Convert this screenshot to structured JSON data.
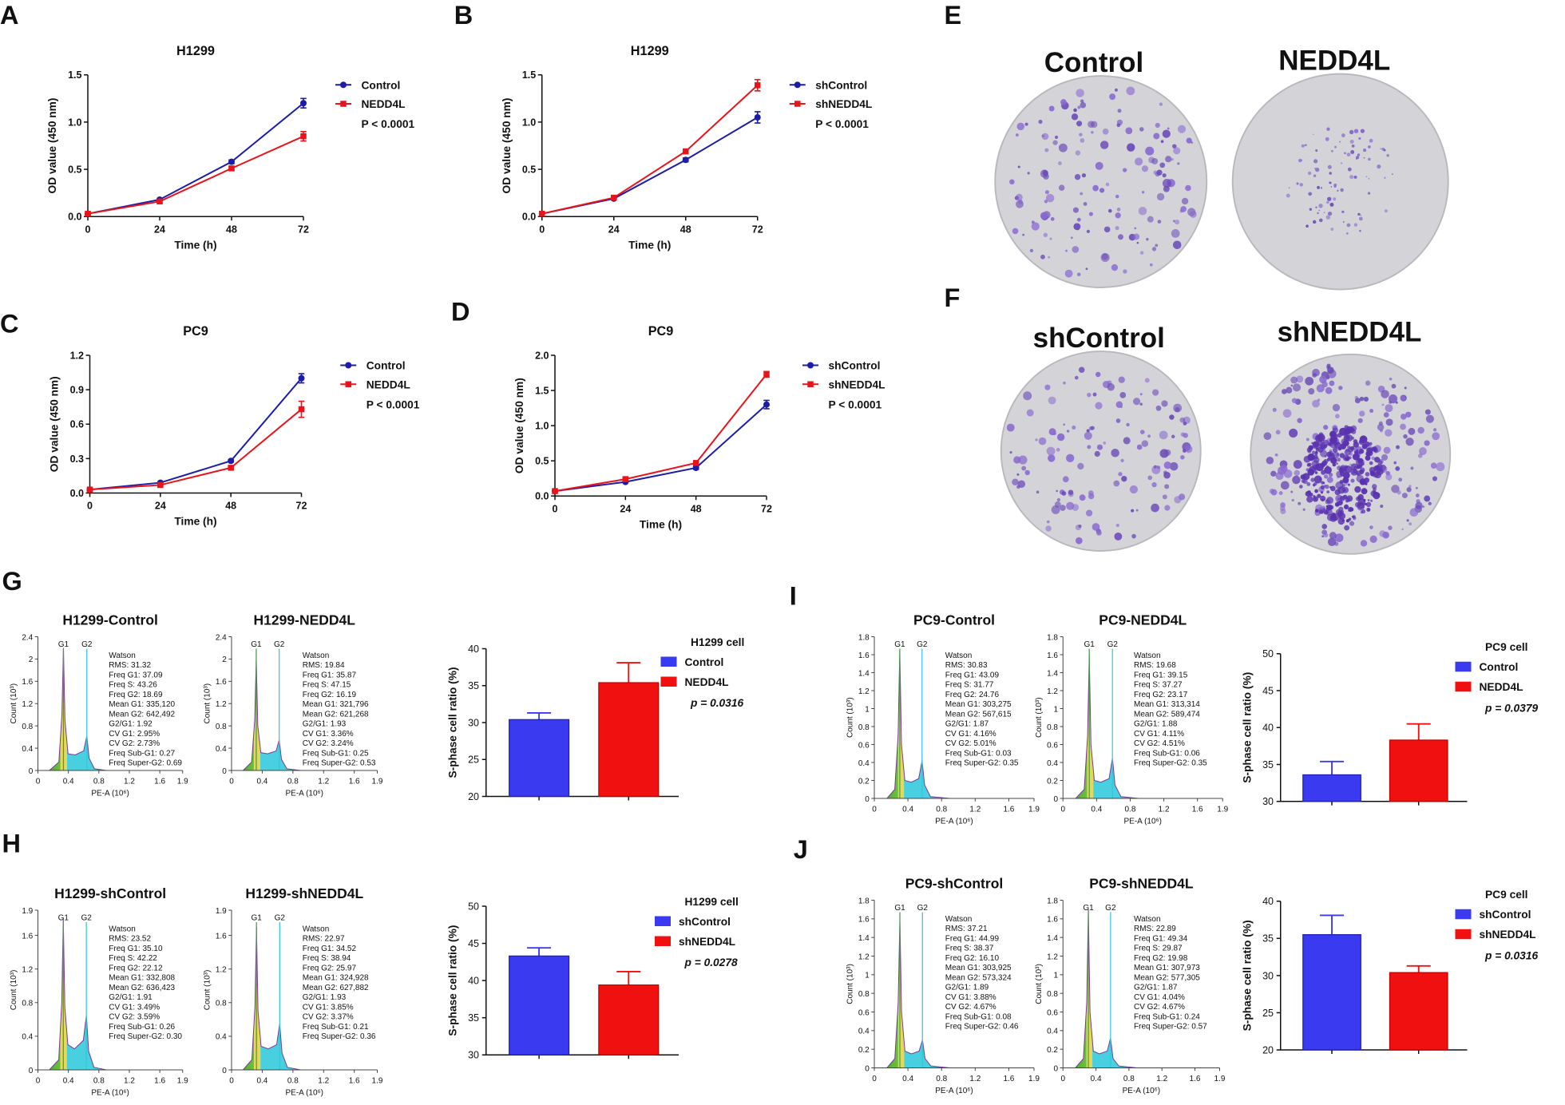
{
  "panel_labels": [
    "A",
    "B",
    "C",
    "D",
    "E",
    "F",
    "G",
    "H",
    "I",
    "J"
  ],
  "colony_plates": [
    {
      "label": "Control"
    },
    {
      "label": "NEDD4L"
    },
    {
      "label": "shControl"
    },
    {
      "label": "shNEDD4L"
    }
  ],
  "chart_data": [
    {
      "type": "line",
      "title": "H1299",
      "xlabel": "Time (h)",
      "ylabel": "OD value (450 nm)",
      "x": [
        0,
        24,
        48,
        72
      ],
      "xlim": [
        0,
        72
      ],
      "xticks": [
        0,
        24,
        48,
        72
      ],
      "ylim": [
        0,
        1.5
      ],
      "yticks": [
        {
          "value": 0,
          "label": "0.0"
        },
        {
          "value": 0.5,
          "label": "0.5"
        },
        {
          "value": 1,
          "label": "1.0"
        },
        {
          "value": 1.5,
          "label": "1.5"
        }
      ],
      "annotation": "P < 0.0001",
      "series": [
        {
          "name": "Control",
          "color": "#1c1ca8",
          "marker": "circle",
          "values": [
            0.03,
            0.18,
            0.58,
            1.2
          ],
          "errors": [
            0.01,
            0.01,
            0.02,
            0.05
          ]
        },
        {
          "name": "NEDD4L",
          "color": "#e8141c",
          "marker": "square",
          "values": [
            0.03,
            0.16,
            0.51,
            0.85
          ],
          "errors": [
            0.01,
            0.01,
            0.02,
            0.05
          ]
        }
      ]
    },
    {
      "type": "line",
      "title": "H1299",
      "xlabel": "Time (h)",
      "ylabel": "OD value (450 nm)",
      "x": [
        0,
        24,
        48,
        72
      ],
      "xlim": [
        0,
        72
      ],
      "xticks": [
        0,
        24,
        48,
        72
      ],
      "ylim": [
        0,
        1.5
      ],
      "yticks": [
        {
          "value": 0,
          "label": "0.0"
        },
        {
          "value": 0.5,
          "label": "0.5"
        },
        {
          "value": 1,
          "label": "1.0"
        },
        {
          "value": 1.5,
          "label": "1.5"
        }
      ],
      "annotation": "P < 0.0001",
      "series": [
        {
          "name": "shControl",
          "color": "#1c1ca8",
          "marker": "circle",
          "values": [
            0.03,
            0.19,
            0.6,
            1.05
          ],
          "errors": [
            0.01,
            0.01,
            0.02,
            0.06
          ]
        },
        {
          "name": "shNEDD4L",
          "color": "#e8141c",
          "marker": "square",
          "values": [
            0.03,
            0.2,
            0.69,
            1.39
          ],
          "errors": [
            0.01,
            0.01,
            0.02,
            0.06
          ]
        }
      ]
    },
    {
      "type": "line",
      "title": "PC9",
      "xlabel": "Time (h)",
      "ylabel": "OD value (450 nm)",
      "x": [
        0,
        24,
        48,
        72
      ],
      "xlim": [
        0,
        72
      ],
      "xticks": [
        0,
        24,
        48,
        72
      ],
      "ylim": [
        0,
        1.2
      ],
      "yticks": [
        {
          "value": 0,
          "label": "0.0"
        },
        {
          "value": 0.3,
          "label": "0.3"
        },
        {
          "value": 0.6,
          "label": "0.6"
        },
        {
          "value": 0.9,
          "label": "0.9"
        },
        {
          "value": 1.2,
          "label": "1.2"
        }
      ],
      "annotation": "P < 0.0001",
      "series": [
        {
          "name": "Control",
          "color": "#1c1ca8",
          "marker": "circle",
          "values": [
            0.03,
            0.09,
            0.28,
            1.0
          ],
          "errors": [
            0.01,
            0.01,
            0.01,
            0.04
          ]
        },
        {
          "name": "NEDD4L",
          "color": "#e8141c",
          "marker": "square",
          "values": [
            0.03,
            0.07,
            0.22,
            0.73
          ],
          "errors": [
            0.01,
            0.01,
            0.01,
            0.07
          ]
        }
      ]
    },
    {
      "type": "line",
      "title": "PC9",
      "xlabel": "Time (h)",
      "ylabel": "OD value (450 nm)",
      "x": [
        0,
        24,
        48,
        72
      ],
      "xlim": [
        0,
        72
      ],
      "xticks": [
        0,
        24,
        48,
        72
      ],
      "ylim": [
        0,
        2
      ],
      "yticks": [
        {
          "value": 0,
          "label": "0.0"
        },
        {
          "value": 0.5,
          "label": "0.5"
        },
        {
          "value": 1,
          "label": "1.0"
        },
        {
          "value": 1.5,
          "label": "1.5"
        },
        {
          "value": 2,
          "label": "2.0"
        }
      ],
      "annotation": "P < 0.0001",
      "series": [
        {
          "name": "shControl",
          "color": "#1c1ca8",
          "marker": "circle",
          "values": [
            0.07,
            0.2,
            0.4,
            1.3
          ],
          "errors": [
            0.01,
            0.01,
            0.02,
            0.06
          ]
        },
        {
          "name": "shNEDD4L",
          "color": "#e8141c",
          "marker": "square",
          "values": [
            0.07,
            0.24,
            0.47,
            1.73
          ],
          "errors": [
            0.01,
            0.01,
            0.02,
            0.04
          ]
        }
      ]
    },
    {
      "type": "area",
      "title": "H1299-Control",
      "xlabel": "PE-A (10⁶)",
      "ylabel": "Count (10³)",
      "x": [
        0.15,
        0.275,
        0.315,
        0.335,
        0.355,
        0.395,
        0.49,
        0.6,
        0.642,
        0.672,
        0.742,
        0.9
      ],
      "values": [
        0,
        0.15,
        1.0,
        2.2,
        0.9,
        0.3,
        0.28,
        0.35,
        0.62,
        0.22,
        0.03,
        0
      ],
      "xlim": [
        0,
        1.9
      ],
      "xticks": [
        0,
        0.4,
        0.8,
        1.2,
        1.6,
        1.9
      ],
      "ylim": [
        0,
        2.4
      ],
      "yticks": [
        0,
        0.4,
        0.8,
        1.2,
        1.6,
        2,
        2.4
      ],
      "gates": [
        {
          "label": "G1",
          "value": 0.335
        },
        {
          "label": "G2",
          "value": 0.642
        }
      ],
      "stats": [
        "Watson",
        "RMS: 31.32",
        "Freq G1: 37.09",
        "Freq S: 43.26",
        "Freq G2: 18.69",
        "Mean G1: 335,120",
        "Mean G2: 642,492",
        "G2/G1: 1.92",
        "CV G1: 2.95%",
        "CV G2: 2.73%",
        "Freq Sub-G1: 0.27",
        "Freq Super-G2: 0.69"
      ]
    },
    {
      "type": "area",
      "title": "H1299-NEDD4L",
      "xlabel": "PE-A (10⁶)",
      "ylabel": "Count (10³)",
      "x": [
        0.15,
        0.262,
        0.302,
        0.322,
        0.342,
        0.382,
        0.47,
        0.581,
        0.621,
        0.651,
        0.721,
        0.9
      ],
      "values": [
        0,
        0.15,
        0.9,
        2.0,
        0.8,
        0.32,
        0.3,
        0.35,
        0.55,
        0.2,
        0.03,
        0
      ],
      "xlim": [
        0,
        1.9
      ],
      "xticks": [
        0,
        0.4,
        0.8,
        1.2,
        1.6,
        1.9
      ],
      "ylim": [
        0,
        2.4
      ],
      "yticks": [
        0,
        0.4,
        0.8,
        1.2,
        1.6,
        2,
        2.4
      ],
      "gates": [
        {
          "label": "G1",
          "value": 0.322
        },
        {
          "label": "G2",
          "value": 0.621
        }
      ],
      "stats": [
        "Watson",
        "RMS: 19.84",
        "Freq G1: 35.87",
        "Freq S: 47.15",
        "Freq G2: 16.19",
        "Mean G1: 321,796",
        "Mean G2: 621,268",
        "G2/G1: 1.93",
        "CV G1: 3.36%",
        "CV G2: 3.24%",
        "Freq Sub-G1: 0.25",
        "Freq Super-G2: 0.53"
      ]
    },
    {
      "type": "bar",
      "ylabel": "S-phase cell ratio (%)",
      "legend_title": "H1299 cell",
      "categories": [
        "Control",
        "NEDD4L"
      ],
      "values": [
        30.4,
        35.4
      ],
      "errors": [
        0.9,
        2.7
      ],
      "colors": [
        "#3a3af0",
        "#f01010"
      ],
      "annotation": "p = 0.0316",
      "ylim": [
        20,
        40
      ],
      "yticks": [
        20,
        25,
        30,
        35,
        40
      ]
    },
    {
      "type": "area",
      "title": "H1299-shControl",
      "xlabel": "PE-A (10⁶)",
      "ylabel": "Count (10³)",
      "x": [
        0.15,
        0.273,
        0.313,
        0.333,
        0.353,
        0.393,
        0.48,
        0.596,
        0.636,
        0.666,
        0.736,
        0.9
      ],
      "values": [
        0,
        0.12,
        0.8,
        1.8,
        0.75,
        0.3,
        0.25,
        0.35,
        0.65,
        0.22,
        0.03,
        0
      ],
      "xlim": [
        0,
        1.9
      ],
      "xticks": [
        0,
        0.4,
        0.8,
        1.2,
        1.6,
        1.9
      ],
      "ylim": [
        0,
        1.9
      ],
      "yticks": [
        0,
        0.4,
        0.8,
        1.2,
        1.6,
        1.9
      ],
      "gates": [
        {
          "label": "G1",
          "value": 0.333
        },
        {
          "label": "G2",
          "value": 0.636
        }
      ],
      "stats": [
        "Watson",
        "RMS: 23.52",
        "Freq G1: 35.10",
        "Freq S: 42.22",
        "Freq G2: 22.12",
        "Mean G1: 332,808",
        "Mean G2: 636,423",
        "G2/G1: 1.91",
        "CV G1: 3.49%",
        "CV G2: 3.59%",
        "Freq Sub-G1: 0.26",
        "Freq Super-G2: 0.30"
      ]
    },
    {
      "type": "area",
      "title": "H1299-shNEDD4L",
      "xlabel": "PE-A (10⁶)",
      "ylabel": "Count (10³)",
      "x": [
        0.15,
        0.265,
        0.305,
        0.325,
        0.345,
        0.385,
        0.48,
        0.588,
        0.628,
        0.658,
        0.728,
        0.9
      ],
      "values": [
        0,
        0.12,
        0.75,
        1.7,
        0.7,
        0.28,
        0.25,
        0.3,
        0.55,
        0.2,
        0.03,
        0
      ],
      "xlim": [
        0,
        1.9
      ],
      "xticks": [
        0,
        0.4,
        0.8,
        1.2,
        1.6,
        1.9
      ],
      "ylim": [
        0,
        1.9
      ],
      "yticks": [
        0,
        0.4,
        0.8,
        1.2,
        1.6,
        1.9
      ],
      "gates": [
        {
          "label": "G1",
          "value": 0.325
        },
        {
          "label": "G2",
          "value": 0.628
        }
      ],
      "stats": [
        "Watson",
        "RMS: 22.97",
        "Freq G1: 34.52",
        "Freq S: 38.94",
        "Freq G2: 25.97",
        "Mean G1: 324,928",
        "Mean G2: 627,882",
        "G2/G1: 1.93",
        "CV G1: 3.85%",
        "CV G2: 3.37%",
        "Freq Sub-G1: 0.21",
        "Freq Super-G2: 0.36"
      ]
    },
    {
      "type": "bar",
      "ylabel": "S-phase cell ratio (%)",
      "legend_title": "H1299 cell",
      "categories": [
        "shControl",
        "shNEDD4L"
      ],
      "values": [
        43.3,
        39.4
      ],
      "errors": [
        1.1,
        1.8
      ],
      "colors": [
        "#3a3af0",
        "#f01010"
      ],
      "annotation": "p = 0.0278",
      "ylim": [
        30,
        50
      ],
      "yticks": [
        30,
        35,
        40,
        45,
        50
      ]
    },
    {
      "type": "area",
      "title": "PC9-Control",
      "xlabel": "PE-A (10⁶)",
      "ylabel": "Count (10³)",
      "x": [
        0.15,
        0.243,
        0.283,
        0.303,
        0.323,
        0.363,
        0.44,
        0.528,
        0.568,
        0.598,
        0.668,
        0.9
      ],
      "values": [
        0,
        0.1,
        0.7,
        1.65,
        0.6,
        0.2,
        0.18,
        0.22,
        0.42,
        0.15,
        0.02,
        0
      ],
      "xlim": [
        0,
        1.9
      ],
      "xticks": [
        0,
        0.4,
        0.8,
        1.2,
        1.6,
        1.9
      ],
      "ylim": [
        0,
        1.8
      ],
      "yticks": [
        0,
        0.2,
        0.4,
        0.6,
        0.8,
        1,
        1.2,
        1.4,
        1.6,
        1.8
      ],
      "gates": [
        {
          "label": "G1",
          "value": 0.303
        },
        {
          "label": "G2",
          "value": 0.568
        }
      ],
      "stats": [
        "Watson",
        "RMS: 30.83",
        "Freq G1: 43.09",
        "Freq S: 31.77",
        "Freq G2: 24.76",
        "Mean G1: 303,275",
        "Mean G2: 567,615",
        "G2/G1: 1.87",
        "CV G1: 4.16%",
        "CV G2: 5.01%",
        "Freq Sub-G1: 0.03",
        "Freq Super-G2: 0.35"
      ]
    },
    {
      "type": "area",
      "title": "PC9-NEDD4L",
      "xlabel": "PE-A (10⁶)",
      "ylabel": "Count (10³)",
      "x": [
        0.15,
        0.253,
        0.293,
        0.313,
        0.333,
        0.373,
        0.45,
        0.549,
        0.589,
        0.619,
        0.689,
        0.9
      ],
      "values": [
        0,
        0.1,
        0.7,
        1.6,
        0.6,
        0.2,
        0.18,
        0.22,
        0.45,
        0.15,
        0.02,
        0
      ],
      "xlim": [
        0,
        1.9
      ],
      "xticks": [
        0,
        0.4,
        0.8,
        1.2,
        1.6,
        1.9
      ],
      "ylim": [
        0,
        1.8
      ],
      "yticks": [
        0,
        0.2,
        0.4,
        0.6,
        0.8,
        1,
        1.2,
        1.4,
        1.6,
        1.8
      ],
      "gates": [
        {
          "label": "G1",
          "value": 0.313
        },
        {
          "label": "G2",
          "value": 0.589
        }
      ],
      "stats": [
        "Watson",
        "RMS: 19.68",
        "Freq G1: 39.15",
        "Freq S: 37.27",
        "Freq G2: 23.17",
        "Mean G1: 313,314",
        "Mean G2: 589,474",
        "G2/G1: 1.88",
        "CV G1: 4.11%",
        "CV G2: 4.51%",
        "Freq Sub-G1: 0.06",
        "Freq Super-G2: 0.35"
      ]
    },
    {
      "type": "bar",
      "ylabel": "S-phase cell ratio (%)",
      "legend_title": "PC9 cell",
      "categories": [
        "Control",
        "NEDD4L"
      ],
      "values": [
        33.6,
        38.3
      ],
      "errors": [
        1.8,
        2.2
      ],
      "colors": [
        "#3a3af0",
        "#f01010"
      ],
      "annotation": "p = 0.0379",
      "ylim": [
        30,
        50
      ],
      "yticks": [
        30,
        35,
        40,
        45,
        50
      ]
    },
    {
      "type": "area",
      "title": "PC9-shControl",
      "xlabel": "PE-A (10⁶)",
      "ylabel": "Count (10³)",
      "x": [
        0.15,
        0.244,
        0.284,
        0.304,
        0.324,
        0.364,
        0.44,
        0.533,
        0.573,
        0.603,
        0.673,
        0.9
      ],
      "values": [
        0,
        0.1,
        0.7,
        1.6,
        0.6,
        0.18,
        0.15,
        0.18,
        0.3,
        0.1,
        0.02,
        0
      ],
      "xlim": [
        0,
        1.9
      ],
      "xticks": [
        0,
        0.4,
        0.8,
        1.2,
        1.6,
        1.9
      ],
      "ylim": [
        0,
        1.8
      ],
      "yticks": [
        0,
        0.2,
        0.4,
        0.6,
        0.8,
        1,
        1.2,
        1.4,
        1.6,
        1.8
      ],
      "gates": [
        {
          "label": "G1",
          "value": 0.304
        },
        {
          "label": "G2",
          "value": 0.573
        }
      ],
      "stats": [
        "Watson",
        "RMS: 37.21",
        "Freq G1: 44.99",
        "Freq S: 38.37",
        "Freq G2: 16.10",
        "Mean G1: 303,925",
        "Mean G2: 573,324",
        "G2/G1: 1.89",
        "CV G1: 3.88%",
        "CV G2: 4.67%",
        "Freq Sub-G1: 0.08",
        "Freq Super-G2: 0.46"
      ]
    },
    {
      "type": "area",
      "title": "PC9-shNEDD4L",
      "xlabel": "PE-A (10⁶)",
      "ylabel": "Count (10³)",
      "x": [
        0.15,
        0.248,
        0.288,
        0.308,
        0.328,
        0.368,
        0.44,
        0.537,
        0.577,
        0.607,
        0.677,
        0.9
      ],
      "values": [
        0,
        0.1,
        0.7,
        1.7,
        0.6,
        0.18,
        0.15,
        0.18,
        0.32,
        0.1,
        0.02,
        0
      ],
      "xlim": [
        0,
        1.9
      ],
      "xticks": [
        0,
        0.4,
        0.8,
        1.2,
        1.6,
        1.9
      ],
      "ylim": [
        0,
        1.8
      ],
      "yticks": [
        0,
        0.2,
        0.4,
        0.6,
        0.8,
        1,
        1.2,
        1.4,
        1.6,
        1.8
      ],
      "gates": [
        {
          "label": "G1",
          "value": 0.308
        },
        {
          "label": "G2",
          "value": 0.577
        }
      ],
      "stats": [
        "Watson",
        "RMS: 22.89",
        "Freq G1: 49.34",
        "Freq S: 29.87",
        "Freq G2: 19.98",
        "Mean G1: 307,973",
        "Mean G2: 577,305",
        "G2/G1: 1.87",
        "CV G1: 4.04%",
        "CV G2: 4.67%",
        "Freq Sub-G1: 0.24",
        "Freq Super-G2: 0.57"
      ]
    },
    {
      "type": "bar",
      "ylabel": "S-phase cell ratio (%)",
      "legend_title": "PC9 cell",
      "categories": [
        "shControl",
        "shNEDD4L"
      ],
      "values": [
        35.5,
        30.4
      ],
      "errors": [
        2.6,
        0.9
      ],
      "colors": [
        "#3a3af0",
        "#f01010"
      ],
      "annotation": "p = 0.0316",
      "ylim": [
        20,
        40
      ],
      "yticks": [
        20,
        25,
        30,
        35,
        40
      ]
    }
  ]
}
